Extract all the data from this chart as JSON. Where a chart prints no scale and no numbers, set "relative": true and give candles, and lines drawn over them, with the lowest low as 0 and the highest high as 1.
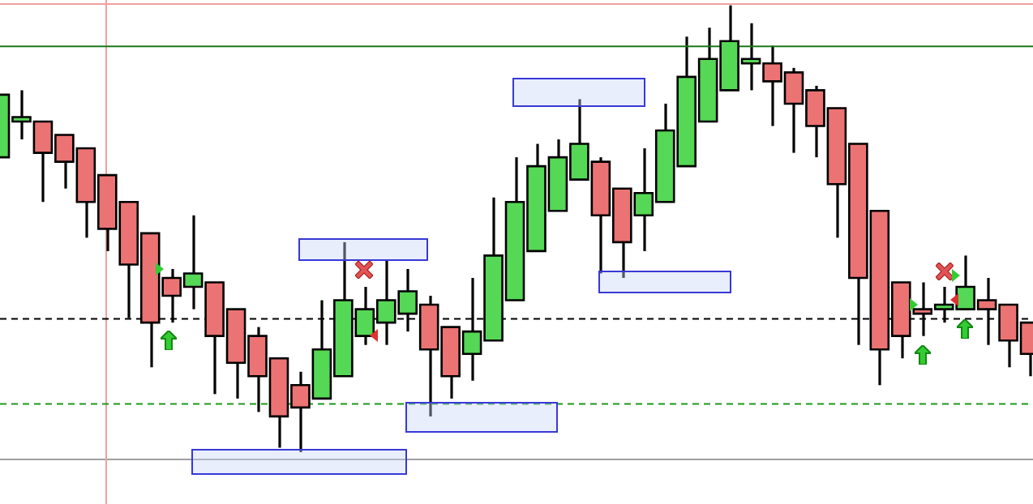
{
  "chart_data": {
    "type": "candlestick",
    "relative": true,
    "categories": [
      null,
      null,
      null,
      null,
      null,
      null,
      null,
      null,
      null,
      null,
      null,
      null,
      null,
      null,
      null,
      null,
      null,
      null,
      null,
      null,
      null,
      null,
      null,
      null,
      null,
      null,
      null,
      null,
      null,
      null,
      null,
      null,
      null,
      null,
      null,
      null,
      null,
      null,
      null,
      null,
      null,
      null,
      null,
      null,
      null,
      null,
      null,
      null,
      null
    ],
    "ohlc": [
      [
        0.66,
        0.8,
        0.66,
        0.8
      ],
      [
        0.74,
        0.81,
        0.7,
        0.75
      ],
      [
        0.74,
        0.74,
        0.56,
        0.67
      ],
      [
        0.71,
        0.71,
        0.59,
        0.65
      ],
      [
        0.68,
        0.68,
        0.48,
        0.56
      ],
      [
        0.62,
        0.62,
        0.45,
        0.5
      ],
      [
        0.56,
        0.56,
        0.3,
        0.42
      ],
      [
        0.49,
        0.49,
        0.19,
        0.29
      ],
      [
        0.39,
        0.41,
        0.29,
        0.35
      ],
      [
        0.37,
        0.53,
        0.32,
        0.4
      ],
      [
        0.38,
        0.38,
        0.13,
        0.26
      ],
      [
        0.32,
        0.32,
        0.12,
        0.2
      ],
      [
        0.26,
        0.28,
        0.09,
        0.17
      ],
      [
        0.21,
        0.21,
        0.01,
        0.08
      ],
      [
        0.15,
        0.18,
        0.0,
        0.1
      ],
      [
        0.12,
        0.34,
        0.12,
        0.23
      ],
      [
        0.17,
        0.47,
        0.17,
        0.34
      ],
      [
        0.26,
        0.37,
        0.24,
        0.32
      ],
      [
        0.29,
        0.43,
        0.24,
        0.34
      ],
      [
        0.31,
        0.41,
        0.27,
        0.36
      ],
      [
        0.33,
        0.35,
        0.08,
        0.23
      ],
      [
        0.28,
        0.28,
        0.12,
        0.17
      ],
      [
        0.22,
        0.39,
        0.16,
        0.27
      ],
      [
        0.25,
        0.57,
        0.25,
        0.44
      ],
      [
        0.34,
        0.66,
        0.34,
        0.56
      ],
      [
        0.45,
        0.69,
        0.45,
        0.64
      ],
      [
        0.54,
        0.7,
        0.54,
        0.66
      ],
      [
        0.61,
        0.79,
        0.61,
        0.69
      ],
      [
        0.65,
        0.66,
        0.4,
        0.53
      ],
      [
        0.59,
        0.59,
        0.39,
        0.47
      ],
      [
        0.53,
        0.68,
        0.45,
        0.58
      ],
      [
        0.56,
        0.78,
        0.56,
        0.72
      ],
      [
        0.64,
        0.93,
        0.64,
        0.84
      ],
      [
        0.74,
        0.95,
        0.74,
        0.88
      ],
      [
        0.81,
        1.0,
        0.81,
        0.92
      ],
      [
        0.87,
        0.96,
        0.81,
        0.88
      ],
      [
        0.87,
        0.91,
        0.73,
        0.83
      ],
      [
        0.85,
        0.86,
        0.67,
        0.78
      ],
      [
        0.81,
        0.82,
        0.66,
        0.73
      ],
      [
        0.77,
        0.77,
        0.48,
        0.6
      ],
      [
        0.69,
        0.69,
        0.24,
        0.39
      ],
      [
        0.54,
        0.54,
        0.15,
        0.23
      ],
      [
        0.38,
        0.38,
        0.21,
        0.26
      ],
      [
        0.32,
        0.38,
        0.26,
        0.31
      ],
      [
        0.32,
        0.37,
        0.29,
        0.33
      ],
      [
        0.32,
        0.44,
        0.32,
        0.37
      ],
      [
        0.34,
        0.39,
        0.24,
        0.32
      ],
      [
        0.33,
        0.33,
        0.19,
        0.25
      ],
      [
        0.29,
        0.29,
        0.17,
        0.22
      ]
    ],
    "colors": [
      "#55d855",
      "#55d855",
      "#ec7373",
      "#ec7373",
      "#ec7373",
      "#ec7373",
      "#ec7373",
      "#ec7373",
      "#ec7373",
      "#55d855",
      "#ec7373",
      "#ec7373",
      "#ec7373",
      "#ec7373",
      "#ec7373",
      "#55d855",
      "#55d855",
      "#55d855",
      "#55d855",
      "#55d855",
      "#ec7373",
      "#ec7373",
      "#55d855",
      "#55d855",
      "#55d855",
      "#55d855",
      "#55d855",
      "#55d855",
      "#ec7373",
      "#ec7373",
      "#55d855",
      "#55d855",
      "#55d855",
      "#55d855",
      "#55d855",
      "#55d855",
      "#ec7373",
      "#ec7373",
      "#ec7373",
      "#ec7373",
      "#ec7373",
      "#ec7373",
      "#ec7373",
      "#ec7373",
      "#55d855",
      "#55d855",
      "#ec7373",
      "#ec7373",
      "#ec7373"
    ],
    "ref_lines": [
      {
        "axis": "y",
        "value": 0.91,
        "color": "#1a7a1a",
        "line_style": "solid"
      },
      {
        "axis": "y",
        "value": 0.3,
        "color": "#000000",
        "line_style": "dashed"
      },
      {
        "axis": "y",
        "value": 0.11,
        "color": "#1a9a1a",
        "line_style": "dashed"
      }
    ]
  }
}
